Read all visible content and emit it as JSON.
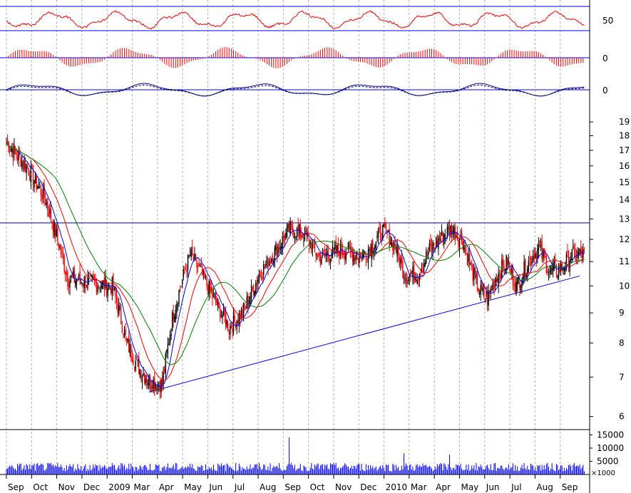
{
  "chart_data": {
    "type": "candlestick",
    "title": "",
    "scale": "log",
    "grid": true,
    "colors": {
      "rising": "#000000",
      "falling": "#ff0000",
      "ma_short": "#0000ff",
      "ma_mid": "#ff0000",
      "ma_long": "#008000",
      "trendline": "#0000ff",
      "resistance": "#000080",
      "volume": "#0000ff",
      "rsi": "#ff0000",
      "macd_hist": "#ff0000",
      "osc": "#000080"
    },
    "x_axis": {
      "months": [
        "Sep",
        "Oct",
        "Nov",
        "Dec",
        "2009",
        "Mar",
        "Apr",
        "May",
        "Jun",
        "Jul",
        "Aug",
        "Sep",
        "Oct",
        "Nov",
        "Dec",
        "2010",
        "Mar",
        "Apr",
        "May",
        "Jun",
        "Jul",
        "Aug",
        "Sep"
      ]
    },
    "price_axis": {
      "ticks": [
        6,
        7,
        8,
        9,
        10,
        11,
        12,
        13,
        14,
        15,
        16,
        17,
        18,
        19
      ],
      "range": [
        5.7,
        19.6
      ]
    },
    "price_anchors": [
      {
        "t": 0,
        "p": 17.5
      },
      {
        "t": 18,
        "p": 16.0
      },
      {
        "t": 35,
        "p": 14.0
      },
      {
        "t": 55,
        "p": 10.3
      },
      {
        "t": 80,
        "p": 10.1
      },
      {
        "t": 95,
        "p": 10.0
      },
      {
        "t": 108,
        "p": 8.0
      },
      {
        "t": 118,
        "p": 7.3
      },
      {
        "t": 128,
        "p": 6.9
      },
      {
        "t": 140,
        "p": 6.8
      },
      {
        "t": 150,
        "p": 9.0
      },
      {
        "t": 165,
        "p": 11.3
      },
      {
        "t": 175,
        "p": 10.5
      },
      {
        "t": 185,
        "p": 9.6
      },
      {
        "t": 200,
        "p": 8.5
      },
      {
        "t": 212,
        "p": 9.0
      },
      {
        "t": 228,
        "p": 10.5
      },
      {
        "t": 242,
        "p": 11.5
      },
      {
        "t": 255,
        "p": 12.5
      },
      {
        "t": 268,
        "p": 12.2
      },
      {
        "t": 280,
        "p": 11.2
      },
      {
        "t": 292,
        "p": 11.4
      },
      {
        "t": 305,
        "p": 11.5
      },
      {
        "t": 318,
        "p": 11.2
      },
      {
        "t": 330,
        "p": 11.8
      },
      {
        "t": 338,
        "p": 12.4
      },
      {
        "t": 348,
        "p": 11.8
      },
      {
        "t": 358,
        "p": 10.4
      },
      {
        "t": 370,
        "p": 10.5
      },
      {
        "t": 380,
        "p": 11.5
      },
      {
        "t": 392,
        "p": 12.2
      },
      {
        "t": 400,
        "p": 12.5
      },
      {
        "t": 410,
        "p": 11.9
      },
      {
        "t": 418,
        "p": 10.6
      },
      {
        "t": 425,
        "p": 9.8
      },
      {
        "t": 432,
        "p": 9.5
      },
      {
        "t": 440,
        "p": 10.4
      },
      {
        "t": 450,
        "p": 11.0
      },
      {
        "t": 458,
        "p": 10.0
      },
      {
        "t": 468,
        "p": 10.9
      },
      {
        "t": 478,
        "p": 11.6
      },
      {
        "t": 488,
        "p": 10.6
      },
      {
        "t": 498,
        "p": 10.7
      },
      {
        "t": 508,
        "p": 11.3
      }
    ],
    "resistance_level": 12.8,
    "trendline": {
      "from": {
        "t": 128,
        "p": 6.6
      },
      "to": {
        "t": 515,
        "p": 10.4
      }
    },
    "volume_axis": {
      "ticks": [
        5000,
        10000,
        15000
      ],
      "multiplier_label": "×1000"
    },
    "volume_spikes": [
      {
        "t": 254,
        "v": 14000
      },
      {
        "t": 357,
        "v": 8000
      },
      {
        "t": 398,
        "v": 7500
      }
    ],
    "indicators": [
      {
        "name": "rsi",
        "level_label": "50"
      },
      {
        "name": "macd_histogram",
        "level_label": "0"
      },
      {
        "name": "oscillator",
        "level_label": "0"
      }
    ]
  }
}
